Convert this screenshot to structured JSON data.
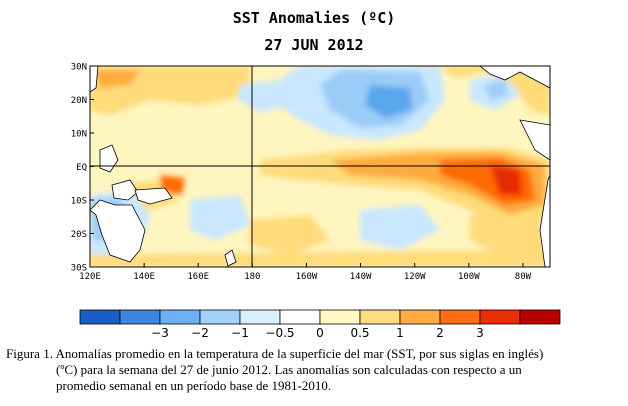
{
  "title": "SST Anomalies (ºC)",
  "date": "27 JUN 2012",
  "map": {
    "lat_labels": [
      "30N",
      "20N",
      "10N",
      "EQ",
      "10S",
      "20S",
      "30S"
    ],
    "lon_labels": [
      "120E",
      "140E",
      "160E",
      "180",
      "160W",
      "140W",
      "120W",
      "100W",
      "80W"
    ],
    "lat_range": [
      -30,
      30
    ],
    "lon_range": [
      120,
      290
    ],
    "grid_lines": {
      "equator": true,
      "dateline": true
    },
    "palette": {
      "land": "#ffffff",
      "neutral": "#ffffff",
      "weak_warm": "#fff5bf",
      "warm": "#ffdb7a",
      "warmer": "#ffaa3d",
      "hot": "#ff6a00",
      "very_hot": "#e82a00",
      "weak_cool": "#c9e7ff",
      "cool": "#9bccf7",
      "cooler": "#5aa6ec",
      "cold": "#2a74d6"
    }
  },
  "colorbar": {
    "tick_labels": [
      "−3",
      "−2",
      "−1",
      "−0.5",
      "0",
      "0.5",
      "1",
      "2",
      "3"
    ],
    "colors": [
      "#1c5ec8",
      "#3d86e0",
      "#6cb0f5",
      "#a3d1fa",
      "#d9efff",
      "#ffffff",
      "#fff8c4",
      "#ffdd80",
      "#ffac42",
      "#ff6e10",
      "#e92f00",
      "#b80000"
    ]
  },
  "caption": {
    "line1": "Figura 1. Anomalías promedio  en la temperatura de la superficie  del mar (SST, por sus siglas  en inglés)",
    "line2": "(ºC) para la semana del 27 de junio   2012.    Las anomalías  son calculadas con respecto a un",
    "line3": "promedio  semanal en un período base de 1981-2010."
  }
}
